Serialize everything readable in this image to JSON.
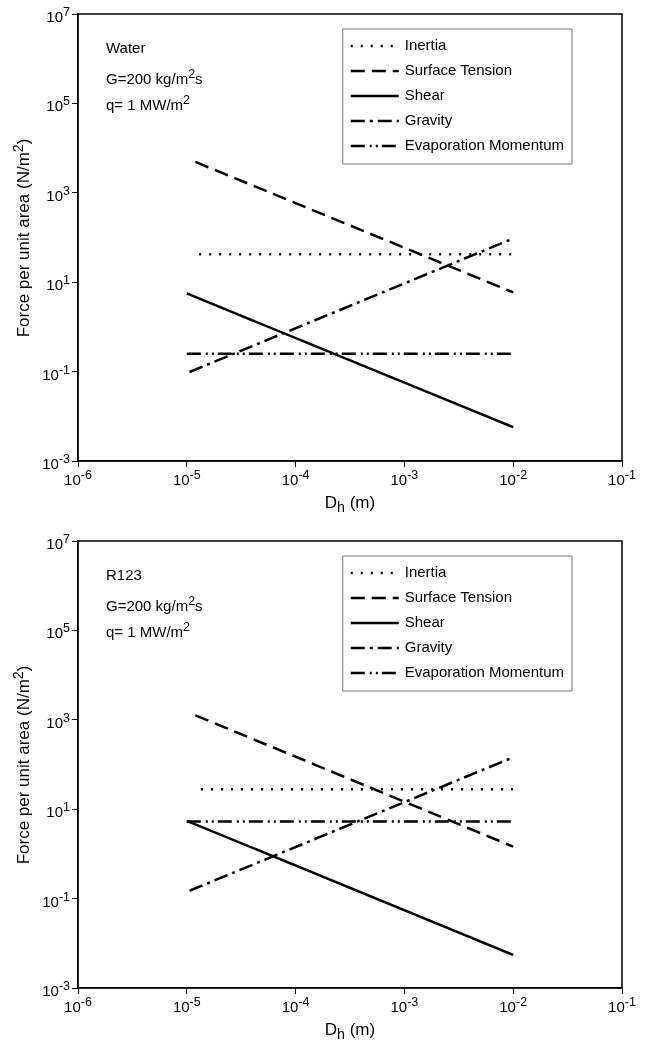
{
  "chart_data": [
    {
      "type": "line",
      "xlabel": "D$_{h}$ (m)",
      "ylabel": "Force per unit area (N/m$^{2}$)",
      "log": "xy",
      "grid": false,
      "legend": "top right",
      "marker": "none",
      "annotations": [
        "Water",
        "G=200 kg/m$^{2}$s",
        "q= 1 MW/m$^{2}$"
      ],
      "xlim": [
        1e-06,
        0.1
      ],
      "xticks": [
        {
          "value": 1e-06,
          "label": "10$^{-6}$"
        },
        {
          "value": 1e-05,
          "label": "10$^{-5}$"
        },
        {
          "value": 0.0001,
          "label": "10$^{-4}$"
        },
        {
          "value": 0.001,
          "label": "10$^{-3}$"
        },
        {
          "value": 0.01,
          "label": "10$^{-2}$"
        },
        {
          "value": 0.1,
          "label": "10$^{-1}$"
        }
      ],
      "ylim": [
        0.001,
        10000000.0
      ],
      "yticks": [
        {
          "value": 0.001,
          "label": "10$^{-3}$"
        },
        {
          "value": 0.1,
          "label": "10$^{-1}$"
        },
        {
          "value": 10,
          "label": "10$^{1}$"
        },
        {
          "value": 1000,
          "label": "10$^{3}$"
        },
        {
          "value": 100000.0,
          "label": "10$^{5}$"
        },
        {
          "value": 10000000.0,
          "label": "10$^{7}$"
        }
      ],
      "series": [
        {
          "name": "Inertia",
          "color": "#000000",
          "line_style": "dotted",
          "x": [
            1.3e-05,
            0.01
          ],
          "values": [
            42,
            42
          ]
        },
        {
          "name": "Surface Tension",
          "color": "#000000",
          "line_style": "dashed",
          "x": [
            1.2e-05,
            0.01
          ],
          "values": [
            4900,
            5.9
          ]
        },
        {
          "name": "Shear",
          "color": "#000000",
          "line_style": "solid",
          "x": [
            1e-05,
            0.01
          ],
          "values": [
            5.6,
            0.0057
          ]
        },
        {
          "name": "Gravity",
          "color": "#000000",
          "line_style": "dashdot",
          "x": [
            1.06e-05,
            0.01
          ],
          "values": [
            0.098,
            95
          ]
        },
        {
          "name": "Evaporation Momentum",
          "color": "#000000",
          "line_style": "dashdotdot",
          "x": [
            1e-05,
            0.01
          ],
          "values": [
            0.25,
            0.25
          ]
        }
      ]
    },
    {
      "type": "line",
      "xlabel": "D$_{h}$ (m)",
      "ylabel": "Force per unit area (N/m$^{2}$)",
      "log": "xy",
      "grid": false,
      "legend": "top right",
      "marker": "none",
      "annotations": [
        "R123",
        "G=200 kg/m$^{2}$s",
        "q= 1 MW/m$^{2}$"
      ],
      "xlim": [
        1e-06,
        0.1
      ],
      "xticks": [
        {
          "value": 1e-06,
          "label": "10$^{-6}$"
        },
        {
          "value": 1e-05,
          "label": "10$^{-5}$"
        },
        {
          "value": 0.0001,
          "label": "10$^{-4}$"
        },
        {
          "value": 0.001,
          "label": "10$^{-3}$"
        },
        {
          "value": 0.01,
          "label": "10$^{-2}$"
        },
        {
          "value": 0.1,
          "label": "10$^{-1}$"
        }
      ],
      "ylim": [
        0.001,
        10000000.0
      ],
      "yticks": [
        {
          "value": 0.001,
          "label": "10$^{-3}$"
        },
        {
          "value": 0.1,
          "label": "10$^{-1}$"
        },
        {
          "value": 10,
          "label": "10$^{1}$"
        },
        {
          "value": 1000,
          "label": "10$^{3}$"
        },
        {
          "value": 100000.0,
          "label": "10$^{5}$"
        },
        {
          "value": 10000000.0,
          "label": "10$^{7}$"
        }
      ],
      "series": [
        {
          "name": "Inertia",
          "color": "#000000",
          "line_style": "dotted",
          "x": [
            1.35e-05,
            0.01
          ],
          "values": [
            28,
            28
          ]
        },
        {
          "name": "Surface Tension",
          "color": "#000000",
          "line_style": "dashed",
          "x": [
            1.2e-05,
            0.01
          ],
          "values": [
            1260,
            1.45
          ]
        },
        {
          "name": "Shear",
          "color": "#000000",
          "line_style": "solid",
          "x": [
            1e-05,
            0.01
          ],
          "values": [
            5.5,
            0.0055
          ]
        },
        {
          "name": "Gravity",
          "color": "#000000",
          "line_style": "dashdot",
          "x": [
            1.06e-05,
            0.01
          ],
          "values": [
            0.15,
            145
          ]
        },
        {
          "name": "Evaporation Momentum",
          "color": "#000000",
          "line_style": "dashdotdot",
          "x": [
            1e-05,
            0.01
          ],
          "values": [
            5.3,
            5.3
          ]
        }
      ]
    }
  ]
}
